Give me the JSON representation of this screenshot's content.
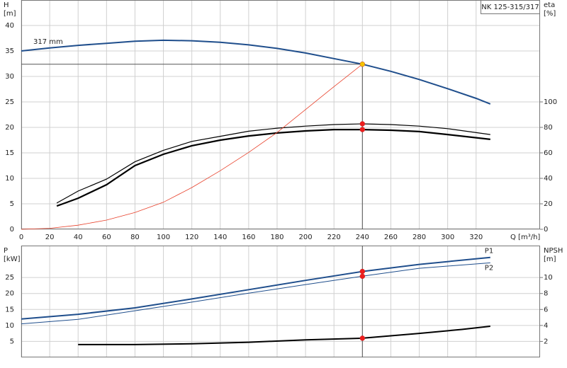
{
  "chart_data": [
    {
      "type": "line",
      "title": "NK 125-315/317",
      "ylabel": [
        "H",
        "[m]"
      ],
      "y2label": [
        "eta",
        "[%]"
      ],
      "xlabel": "Q [m³/h]",
      "xlim": [
        0,
        365
      ],
      "xticks": [
        0,
        20,
        40,
        60,
        80,
        100,
        120,
        140,
        160,
        180,
        200,
        220,
        240,
        260,
        280,
        300,
        320
      ],
      "ylim": [
        0,
        45
      ],
      "yticks": [
        0,
        5,
        10,
        15,
        20,
        25,
        30,
        35,
        40
      ],
      "y2lim": [
        0,
        180
      ],
      "y2ticks": [
        0,
        20,
        40,
        60,
        80,
        100
      ],
      "grid": true,
      "series": [
        {
          "name": "317 mm",
          "color": "#1f4e8c",
          "width": 2,
          "x": [
            0,
            20,
            40,
            60,
            80,
            100,
            120,
            140,
            160,
            180,
            200,
            220,
            240,
            260,
            280,
            300,
            320,
            330
          ],
          "values": [
            35.0,
            35.6,
            36.1,
            36.5,
            36.9,
            37.1,
            37.0,
            36.7,
            36.2,
            35.5,
            34.6,
            33.5,
            32.4,
            31.0,
            29.4,
            27.6,
            25.7,
            24.6
          ]
        },
        {
          "color": "#000000",
          "width": 1.2,
          "axis": "y2",
          "x": [
            25,
            40,
            60,
            80,
            100,
            120,
            140,
            160,
            180,
            200,
            220,
            240,
            260,
            280,
            300,
            330
          ],
          "values": [
            20.6,
            30,
            39.4,
            53,
            62,
            69,
            73,
            77,
            79.4,
            81,
            82.2,
            82.8,
            82.2,
            81,
            79,
            74.4
          ]
        },
        {
          "color": "#000000",
          "width": 2.2,
          "axis": "y2",
          "x": [
            25,
            40,
            60,
            80,
            100,
            120,
            140,
            160,
            180,
            200,
            220,
            240,
            260,
            280,
            300,
            330
          ],
          "values": [
            18.3,
            24.4,
            35,
            50,
            58.9,
            65.6,
            70,
            73.3,
            75.6,
            77.2,
            78.3,
            78.3,
            77.8,
            76.7,
            74.4,
            70.6
          ]
        },
        {
          "color": "#e8402a",
          "width": 0.8,
          "x": [
            0,
            20,
            40,
            60,
            80,
            100,
            120,
            140,
            160,
            180,
            200,
            220,
            240
          ],
          "values": [
            0,
            0.2,
            0.8,
            1.8,
            3.3,
            5.3,
            8.2,
            11.5,
            15.1,
            19.0,
            23.5,
            28.0,
            32.4
          ]
        }
      ],
      "points": [
        {
          "x": 240,
          "y": 32.4,
          "color": "#f5c400"
        },
        {
          "x": 240,
          "y": 82.8,
          "axis": "y2",
          "color": "#ee1c1c"
        },
        {
          "x": 240,
          "y": 78.3,
          "axis": "y2",
          "color": "#ee1c1c"
        }
      ]
    },
    {
      "type": "line",
      "ylabel": [
        "P",
        "[kW]"
      ],
      "y2label": [
        "NPSH",
        "[m]"
      ],
      "ylim": [
        0,
        35
      ],
      "yticks": [
        5,
        10,
        15,
        20,
        25
      ],
      "y2lim": [
        0,
        14
      ],
      "y2ticks": [
        2,
        4,
        6,
        8,
        10
      ],
      "grid": true,
      "series": [
        {
          "name": "P1",
          "color": "#1f4e8c",
          "width": 2,
          "x": [
            0,
            40,
            80,
            120,
            160,
            200,
            240,
            280,
            330
          ],
          "values": [
            12.0,
            13.5,
            15.5,
            18.3,
            21.2,
            24.1,
            26.9,
            29.1,
            31.3
          ]
        },
        {
          "name": "P2",
          "color": "#1f4e8c",
          "width": 1,
          "x": [
            0,
            40,
            80,
            120,
            160,
            200,
            240,
            280,
            330
          ],
          "values": [
            10.5,
            11.9,
            14.6,
            17.3,
            20.1,
            22.8,
            25.4,
            27.9,
            29.6
          ]
        },
        {
          "color": "#000000",
          "width": 2,
          "axis": "y2",
          "x": [
            40,
            80,
            120,
            160,
            200,
            240,
            280,
            310,
            330
          ],
          "values": [
            1.6,
            1.6,
            1.7,
            1.9,
            2.2,
            2.4,
            3.0,
            3.5,
            3.9
          ]
        }
      ],
      "points": [
        {
          "x": 240,
          "y": 26.9,
          "color": "#ee1c1c"
        },
        {
          "x": 240,
          "y": 25.4,
          "color": "#ee1c1c"
        },
        {
          "x": 240,
          "y": 2.4,
          "axis": "y2",
          "color": "#ee1c1c"
        }
      ]
    }
  ]
}
